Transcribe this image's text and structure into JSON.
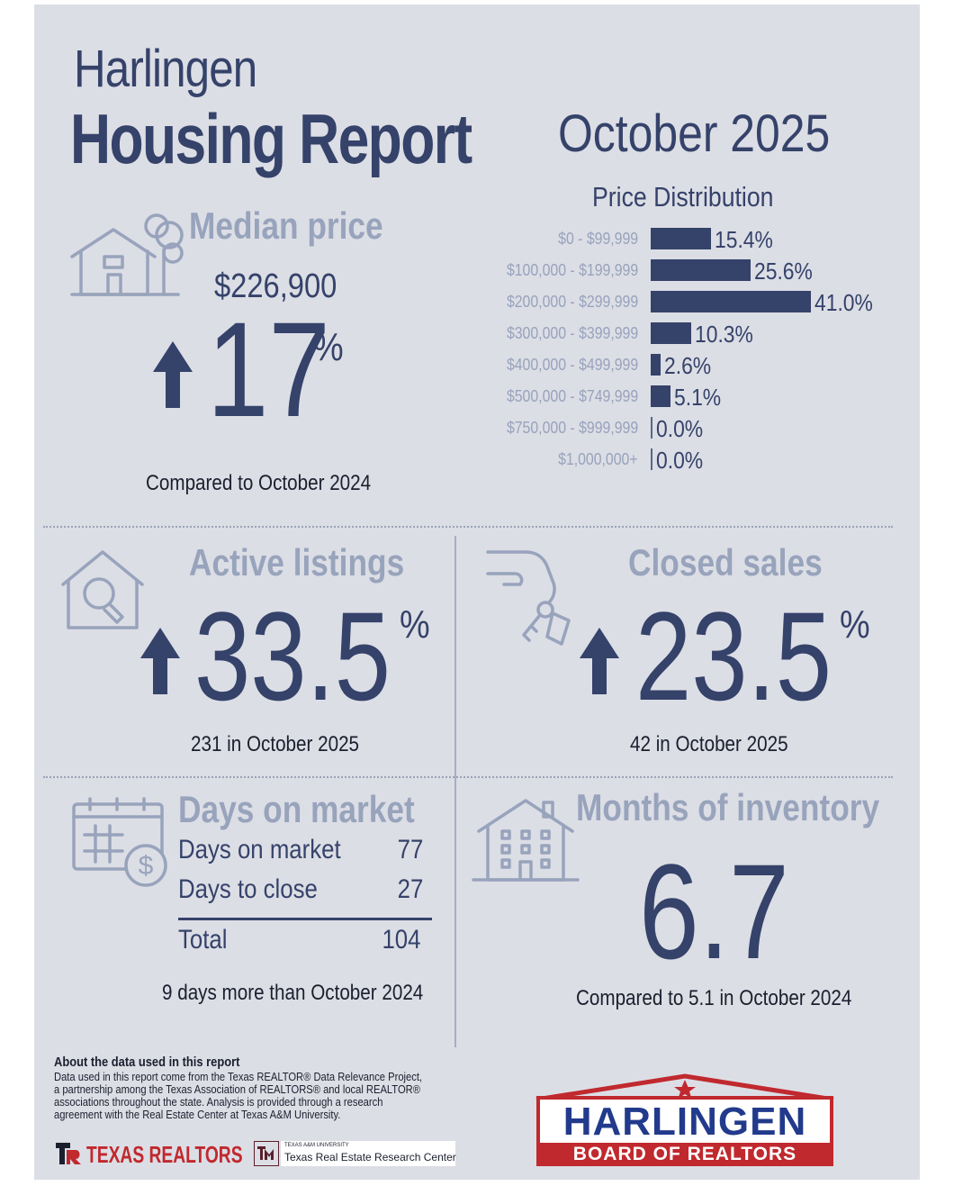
{
  "header": {
    "city": "Harlingen",
    "title": "Housing Report",
    "period": "October 2025"
  },
  "median_price": {
    "label": "Median price",
    "value": "$226,900",
    "change": "17",
    "unit": "%",
    "direction": "up",
    "note": "Compared to October 2024"
  },
  "price_distribution": {
    "title": "Price Distribution"
  },
  "chart_data": {
    "type": "bar",
    "title": "Price Distribution",
    "orientation": "horizontal",
    "categories": [
      "$0 - $99,999",
      "$100,000 - $199,999",
      "$200,000 - $299,999",
      "$300,000 - $399,999",
      "$400,000 - $499,999",
      "$500,000 - $749,999",
      "$750,000 - $999,999",
      "$1,000,000+"
    ],
    "values": [
      15.4,
      25.6,
      41.0,
      10.3,
      2.6,
      5.1,
      0.0,
      0.0
    ],
    "value_labels": [
      "15.4%",
      "25.6%",
      "41.0%",
      "10.3%",
      "2.6%",
      "5.1%",
      "0.0%",
      "0.0%"
    ],
    "xlim": [
      0,
      41.0
    ],
    "grid": false,
    "color": "#35426a"
  },
  "active_listings": {
    "label": "Active listings",
    "change": "33.5",
    "unit": "%",
    "direction": "up",
    "note": "231 in October 2025"
  },
  "closed_sales": {
    "label": "Closed sales",
    "change": "23.5",
    "unit": "%",
    "direction": "up",
    "note": "42 in October 2025"
  },
  "days_on_market": {
    "label": "Days on market",
    "rows": [
      {
        "name": "Days on market",
        "value": "77"
      },
      {
        "name": "Days to close",
        "value": "27"
      }
    ],
    "total_name": "Total",
    "total_value": "104",
    "note": "9 days more than October 2024"
  },
  "months_inventory": {
    "label": "Months of inventory",
    "value": "6.7",
    "note": "Compared to 5.1 in October 2024"
  },
  "footer": {
    "about_title": "About the data used in this report",
    "about_text": "Data used in this report come from the Texas REALTOR® Data Relevance Project, a partnership among the Texas Association of REALTORS® and local REALTOR® associations throughout the state. Analysis is provided through a research agreement with the Real Estate Center at Texas A&M University.",
    "texas_realtors": "TEXAS REALTORS",
    "tamu_small": "TEXAS A&M UNIVERSITY",
    "tamu_center": "Texas Real Estate Research Center",
    "board_name": "HARLINGEN",
    "board_sub": "BOARD OF REALTORS"
  },
  "colors": {
    "navy": "#35426a",
    "faded": "#98a3bc",
    "background": "#dcdee5",
    "logo_red": "#c0292e",
    "logo_blue": "#223a8c"
  }
}
